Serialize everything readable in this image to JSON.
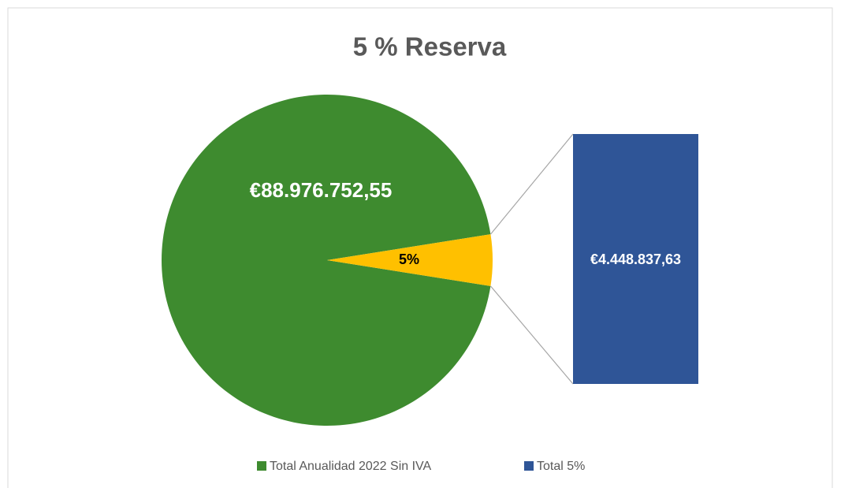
{
  "chart_data": {
    "type": "bar-of-pie",
    "title": "5 % Reserva",
    "series": [
      {
        "name": "Total Anualidad 2022 Sin IVA",
        "color": "#3e8b2f",
        "value": 88976752.55,
        "value_label": "€88.976.752,55"
      },
      {
        "name": "Total 5%",
        "color": "#2f5597",
        "value": 4448837.63,
        "value_label": "€4.448.837,63"
      }
    ],
    "split": {
      "color": "#ffc000",
      "percent": 5,
      "label": "5%"
    }
  }
}
